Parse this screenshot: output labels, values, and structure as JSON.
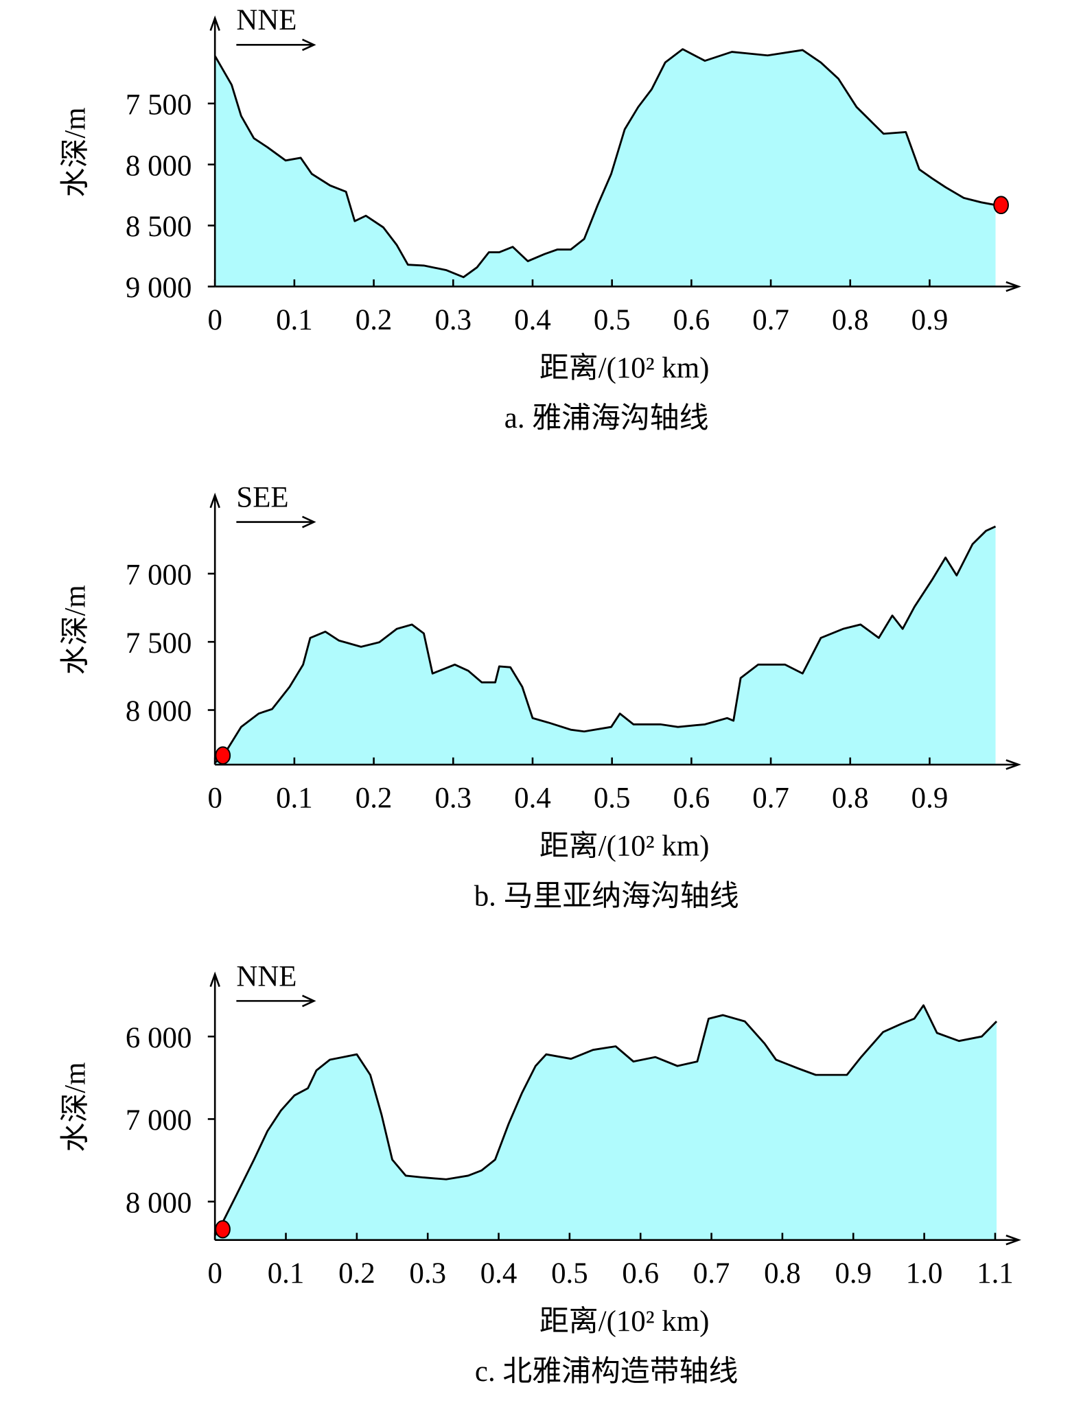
{
  "chart_data": [
    {
      "type": "area",
      "title": "a. 雅浦海沟轴线",
      "xlabel": "距离/(10² km)",
      "ylabel": "水深/m",
      "direction": "NNE",
      "color": "#b0fbfd",
      "line_color": "#000000",
      "x": [
        0,
        0.021,
        0.033,
        0.049,
        0.066,
        0.089,
        0.108,
        0.122,
        0.145,
        0.165,
        0.176,
        0.19,
        0.212,
        0.229,
        0.243,
        0.263,
        0.291,
        0.313,
        0.33,
        0.345,
        0.358,
        0.375,
        0.394,
        0.415,
        0.431,
        0.448,
        0.465,
        0.482,
        0.499,
        0.516,
        0.533,
        0.55,
        0.567,
        0.589,
        0.617,
        0.651,
        0.696,
        0.74,
        0.763,
        0.785,
        0.808,
        0.842,
        0.87,
        0.887,
        0.903,
        0.92,
        0.943,
        0.965,
        0.983
      ],
      "values": [
        7110,
        7347,
        7602,
        7785,
        7858,
        7967,
        7945,
        8077,
        8172,
        8223,
        8464,
        8420,
        8515,
        8660,
        8821,
        8828,
        8865,
        8923,
        8843,
        8719,
        8719,
        8675,
        8792,
        8734,
        8697,
        8697,
        8610,
        8332,
        8077,
        7712,
        7529,
        7383,
        7164,
        7055,
        7150,
        7077,
        7106,
        7062,
        7164,
        7296,
        7529,
        7748,
        7734,
        8040,
        8113,
        8186,
        8274,
        8310,
        8332
      ],
      "marker": {
        "x": 0.99,
        "y": 8332,
        "color": "#ff0000"
      },
      "xlim": [
        0,
        1.012
      ],
      "ylim": [
        9000,
        6800
      ],
      "xticks": [
        0,
        0.1,
        0.2,
        0.3,
        0.4,
        0.5,
        0.6,
        0.7,
        0.8,
        0.9
      ],
      "yticks": [
        {
          "value": 7500,
          "label": "7 500"
        },
        {
          "value": 8000,
          "label": "8 000"
        },
        {
          "value": 8500,
          "label": "8 500"
        },
        {
          "value": 9000,
          "label": "9 000"
        }
      ]
    },
    {
      "type": "area",
      "title": "b. 马里亚纳海沟轴线",
      "xlabel": "距离/(10² km)",
      "ylabel": "水深/m",
      "direction": "SEE",
      "color": "#b0fbfd",
      "line_color": "#000000",
      "x": [
        0,
        0.01,
        0.033,
        0.055,
        0.072,
        0.094,
        0.111,
        0.12,
        0.139,
        0.156,
        0.184,
        0.207,
        0.229,
        0.248,
        0.263,
        0.274,
        0.302,
        0.319,
        0.336,
        0.353,
        0.358,
        0.372,
        0.387,
        0.4,
        0.42,
        0.448,
        0.465,
        0.499,
        0.51,
        0.527,
        0.561,
        0.583,
        0.617,
        0.645,
        0.653,
        0.662,
        0.684,
        0.718,
        0.74,
        0.763,
        0.791,
        0.813,
        0.836,
        0.853,
        0.866,
        0.881,
        0.903,
        0.92,
        0.934,
        0.954,
        0.971,
        0.983
      ],
      "values": [
        8386,
        8340,
        8124,
        8026,
        7993,
        7830,
        7667,
        7471,
        7425,
        7490,
        7536,
        7503,
        7405,
        7373,
        7438,
        7732,
        7667,
        7712,
        7797,
        7797,
        7680,
        7686,
        7830,
        8059,
        8092,
        8144,
        8157,
        8124,
        8026,
        8105,
        8105,
        8124,
        8105,
        8059,
        8078,
        7765,
        7667,
        7667,
        7732,
        7471,
        7405,
        7373,
        7471,
        7307,
        7405,
        7242,
        7046,
        6882,
        7013,
        6784,
        6686,
        6654
      ],
      "marker": {
        "x": 0.01,
        "y": 8333,
        "color": "#ff0000"
      },
      "xlim": [
        0,
        1.012
      ],
      "ylim": [
        8400,
        6425
      ],
      "xticks": [
        0,
        0.1,
        0.2,
        0.3,
        0.4,
        0.5,
        0.6,
        0.7,
        0.8,
        0.9
      ],
      "yticks": [
        {
          "value": 7000,
          "label": "7 000"
        },
        {
          "value": 7500,
          "label": "7 500"
        },
        {
          "value": 8000,
          "label": "8 000"
        }
      ]
    },
    {
      "type": "area",
      "title": "c. 北雅浦构造带轴线",
      "xlabel": "距离/(10² km)",
      "ylabel": "水深/m",
      "direction": "NNE",
      "color": "#b0fbfd",
      "line_color": "#000000",
      "x": [
        0,
        0.011,
        0.03,
        0.055,
        0.074,
        0.093,
        0.112,
        0.131,
        0.143,
        0.162,
        0.181,
        0.2,
        0.219,
        0.235,
        0.25,
        0.269,
        0.294,
        0.326,
        0.357,
        0.376,
        0.395,
        0.414,
        0.433,
        0.452,
        0.467,
        0.502,
        0.533,
        0.565,
        0.59,
        0.621,
        0.652,
        0.68,
        0.696,
        0.716,
        0.747,
        0.775,
        0.791,
        0.823,
        0.847,
        0.891,
        0.911,
        0.942,
        0.967,
        0.986,
        0.999,
        1.018,
        1.049,
        1.081,
        1.102
      ],
      "values": [
        8411,
        8249,
        7924,
        7492,
        7146,
        6897,
        6714,
        6627,
        6411,
        6281,
        6249,
        6216,
        6465,
        6951,
        7492,
        7686,
        7708,
        7730,
        7686,
        7622,
        7492,
        7059,
        6681,
        6357,
        6216,
        6270,
        6162,
        6119,
        6303,
        6249,
        6357,
        6303,
        5784,
        5741,
        5816,
        6086,
        6281,
        6389,
        6465,
        6465,
        6249,
        5946,
        5849,
        5784,
        5622,
        5957,
        6054,
        6000,
        5816
      ],
      "marker": {
        "x": 0.011,
        "y": 8335,
        "color": "#ff0000"
      },
      "xlim": [
        0,
        1.133
      ],
      "ylim": [
        8465,
        5245
      ],
      "xticks": [
        0,
        0.1,
        0.2,
        0.3,
        0.4,
        0.5,
        0.6,
        0.7,
        0.8,
        0.9,
        {
          "value": 1,
          "label": "1.0"
        },
        1.1
      ],
      "yticks": [
        {
          "value": 6000,
          "label": "6 000"
        },
        {
          "value": 7000,
          "label": "7 000"
        },
        {
          "value": 8000,
          "label": "8 000"
        }
      ]
    }
  ]
}
